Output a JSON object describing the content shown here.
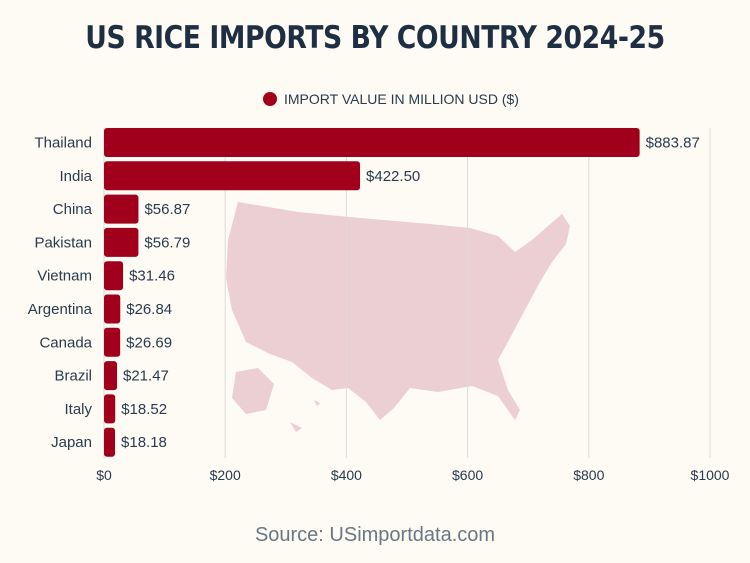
{
  "title": "US RICE IMPORTS BY COUNTRY 2024-25",
  "source": "Source: USimportdata.com",
  "colors": {
    "bar": "#a1001c",
    "map": "#eccfd2",
    "grid": "#dcdcd6",
    "text": "#2a3b4f"
  },
  "chart_data": {
    "type": "bar",
    "orientation": "horizontal",
    "categories": [
      "Thailand",
      "India",
      "China",
      "Pakistan",
      "Vietnam",
      "Argentina",
      "Canada",
      "Brazil",
      "Italy",
      "Japan"
    ],
    "series": [
      {
        "name": "IMPORT VALUE IN MILLION USD ($)",
        "values": [
          883.87,
          422.5,
          56.87,
          56.79,
          31.46,
          26.84,
          26.69,
          21.47,
          18.52,
          18.18
        ]
      }
    ],
    "data_labels": [
      "$883.87",
      "$422.50",
      "$56.87",
      "$56.79",
      "$31.46",
      "$26.84",
      "$26.69",
      "$21.47",
      "$18.52",
      "$18.18"
    ],
    "xlim": [
      0,
      1000
    ],
    "xticks": [
      0,
      200,
      400,
      600,
      800,
      1000
    ],
    "xtick_labels": [
      "$0",
      "$200",
      "$400",
      "$600",
      "$800",
      "$1000"
    ],
    "grid": true,
    "legend": "top-center",
    "background_image": "us-map-icon"
  }
}
